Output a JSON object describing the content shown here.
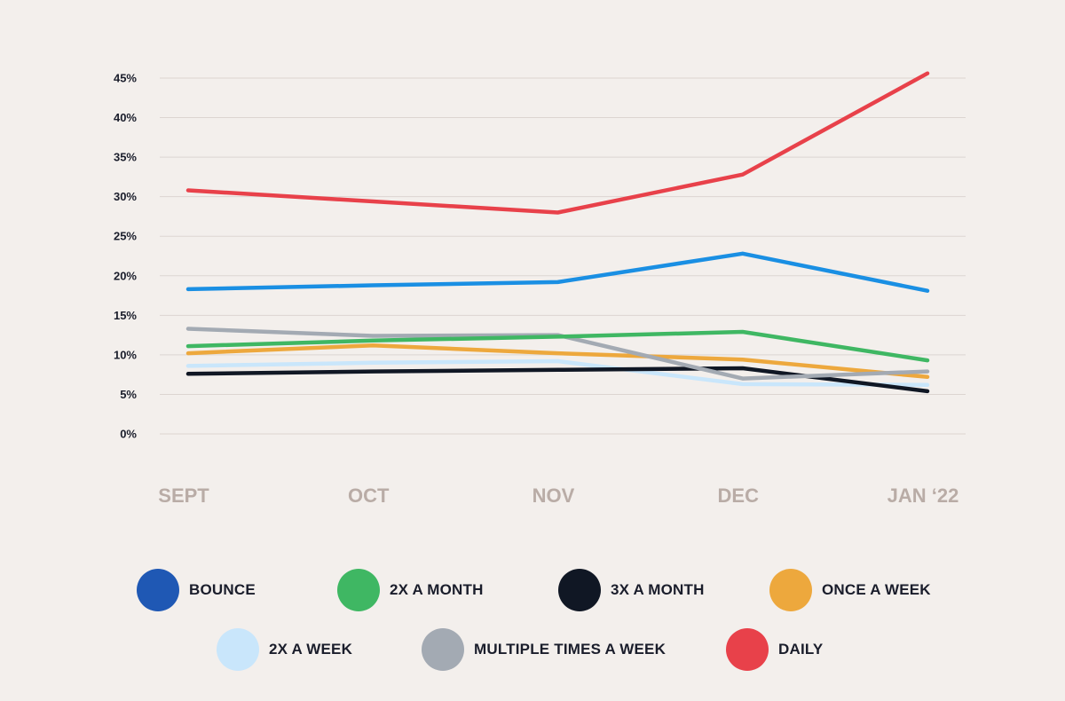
{
  "chart_data": {
    "type": "line",
    "title": "",
    "xlabel": "",
    "ylabel": "",
    "categories": [
      "SEPT",
      "OCT",
      "NOV",
      "DEC",
      "JAN ‘22"
    ],
    "yticks": [
      "0%",
      "5%",
      "10%",
      "15%",
      "20%",
      "25%",
      "30%",
      "35%",
      "40%",
      "45%"
    ],
    "ylim": [
      0,
      45
    ],
    "grid": true,
    "legend_position": "bottom",
    "series": [
      {
        "name": "2X A WEEK",
        "color": "#c9e6fb",
        "values": [
          8.6,
          9.0,
          9.2,
          6.3,
          6.2
        ]
      },
      {
        "name": "3X A MONTH",
        "color": "#101724",
        "values": [
          7.6,
          7.9,
          8.1,
          8.3,
          5.4
        ]
      },
      {
        "name": "ONCE A WEEK",
        "color": "#eda83d",
        "values": [
          10.2,
          11.2,
          10.2,
          9.4,
          7.2
        ]
      },
      {
        "name": "MULTIPLE TIMES A WEEK",
        "color": "#a3aab3",
        "values": [
          13.3,
          12.4,
          12.5,
          7.0,
          7.9
        ]
      },
      {
        "name": "2X A MONTH",
        "color": "#3fb763",
        "values": [
          11.1,
          11.8,
          12.3,
          12.9,
          9.3
        ]
      },
      {
        "name": "BOUNCE",
        "color": "#1a8fe3",
        "values": [
          18.3,
          18.8,
          19.2,
          22.8,
          18.1
        ]
      },
      {
        "name": "DAILY",
        "color": "#e8414a",
        "values": [
          30.8,
          29.4,
          28.0,
          32.8,
          45.6
        ]
      }
    ]
  },
  "legend": [
    {
      "label": "BOUNCE",
      "color": "#1f58b4"
    },
    {
      "label": "2X A MONTH",
      "color": "#3fb763"
    },
    {
      "label": "3X A MONTH",
      "color": "#101724"
    },
    {
      "label": "ONCE A WEEK",
      "color": "#eda83d"
    },
    {
      "label": "2X A WEEK",
      "color": "#c9e6fb"
    },
    {
      "label": "MULTIPLE TIMES A WEEK",
      "color": "#a3aab3"
    },
    {
      "label": "DAILY",
      "color": "#e8414a"
    }
  ]
}
